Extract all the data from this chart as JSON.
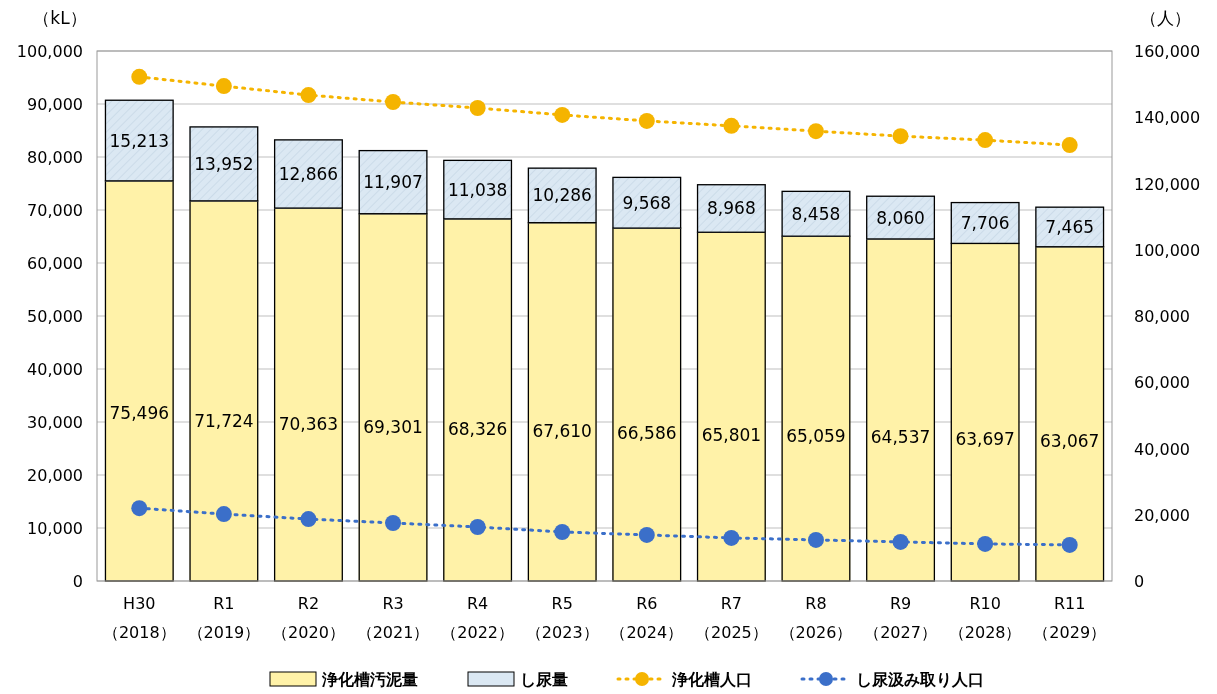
{
  "chart_data": {
    "type": "bar",
    "stacked": true,
    "ylabel": "（kL）",
    "y2label": "（人）",
    "categories": [
      "H30\n（2018）",
      "R1\n（2019）",
      "R2\n（2020）",
      "R3\n（2021）",
      "R4\n（2022）",
      "R5\n（2023）",
      "R6\n（2024）",
      "R7\n（2025）",
      "R8\n（2026）",
      "R9\n（2027）",
      "R10\n（2028）",
      "R11\n（2029）"
    ],
    "ylim": [
      0,
      100000
    ],
    "yticks": [
      {
        "value": 0,
        "label": "0"
      },
      {
        "value": 10000,
        "label": "10,000"
      },
      {
        "value": 20000,
        "label": "20,000"
      },
      {
        "value": 30000,
        "label": "30,000"
      },
      {
        "value": 40000,
        "label": "40,000"
      },
      {
        "value": 50000,
        "label": "50,000"
      },
      {
        "value": 60000,
        "label": "60,000"
      },
      {
        "value": 70000,
        "label": "70,000"
      },
      {
        "value": 80000,
        "label": "80,000"
      },
      {
        "value": 90000,
        "label": "90,000"
      },
      {
        "value": 100000,
        "label": "100,000"
      }
    ],
    "y2lim": [
      0,
      160000
    ],
    "y2ticks": [
      {
        "value": 0,
        "label": "0"
      },
      {
        "value": 20000,
        "label": "20,000"
      },
      {
        "value": 40000,
        "label": "40,000"
      },
      {
        "value": 60000,
        "label": "60,000"
      },
      {
        "value": 80000,
        "label": "80,000"
      },
      {
        "value": 100000,
        "label": "100,000"
      },
      {
        "value": 120000,
        "label": "120,000"
      },
      {
        "value": 140000,
        "label": "140,000"
      },
      {
        "value": 160000,
        "label": "160,000"
      }
    ],
    "grid": "y",
    "legend": "bottom",
    "marker": "circle",
    "line_style": "dotted",
    "series": [
      {
        "name": "浄化槽汚泥量",
        "type": "bar",
        "color": "#fff2a8",
        "values": [
          75496,
          71724,
          70363,
          69301,
          68326,
          67610,
          66586,
          65801,
          65059,
          64537,
          63697,
          63067
        ],
        "value_labels": [
          "75,496",
          "71,724",
          "70,363",
          "69,301",
          "68,326",
          "67,610",
          "66,586",
          "65,801",
          "65,059",
          "64,537",
          "63,697",
          "63,067"
        ]
      },
      {
        "name": "し尿量",
        "type": "bar",
        "color": "#dbe8f3",
        "values": [
          15213,
          13952,
          12866,
          11907,
          11038,
          10286,
          9568,
          8968,
          8458,
          8060,
          7706,
          7465
        ],
        "value_labels": [
          "15,213",
          "13,952",
          "12,866",
          "11,907",
          "11,038",
          "10,286",
          "9,568",
          "8,968",
          "8,458",
          "8,060",
          "7,706",
          "7,465"
        ]
      },
      {
        "name": "浄化槽人口",
        "type": "line",
        "axis": "y2",
        "color": "#f5b400",
        "values": [
          152200,
          149400,
          146700,
          144600,
          142800,
          140700,
          138900,
          137400,
          135800,
          134300,
          133100,
          131600
        ]
      },
      {
        "name": "し尿汲み取り人口",
        "type": "line",
        "axis": "y2",
        "color": "#3b6fc9",
        "values": [
          22000,
          20200,
          18700,
          17500,
          16300,
          14800,
          13900,
          13000,
          12400,
          11800,
          11200,
          10900
        ]
      }
    ]
  }
}
